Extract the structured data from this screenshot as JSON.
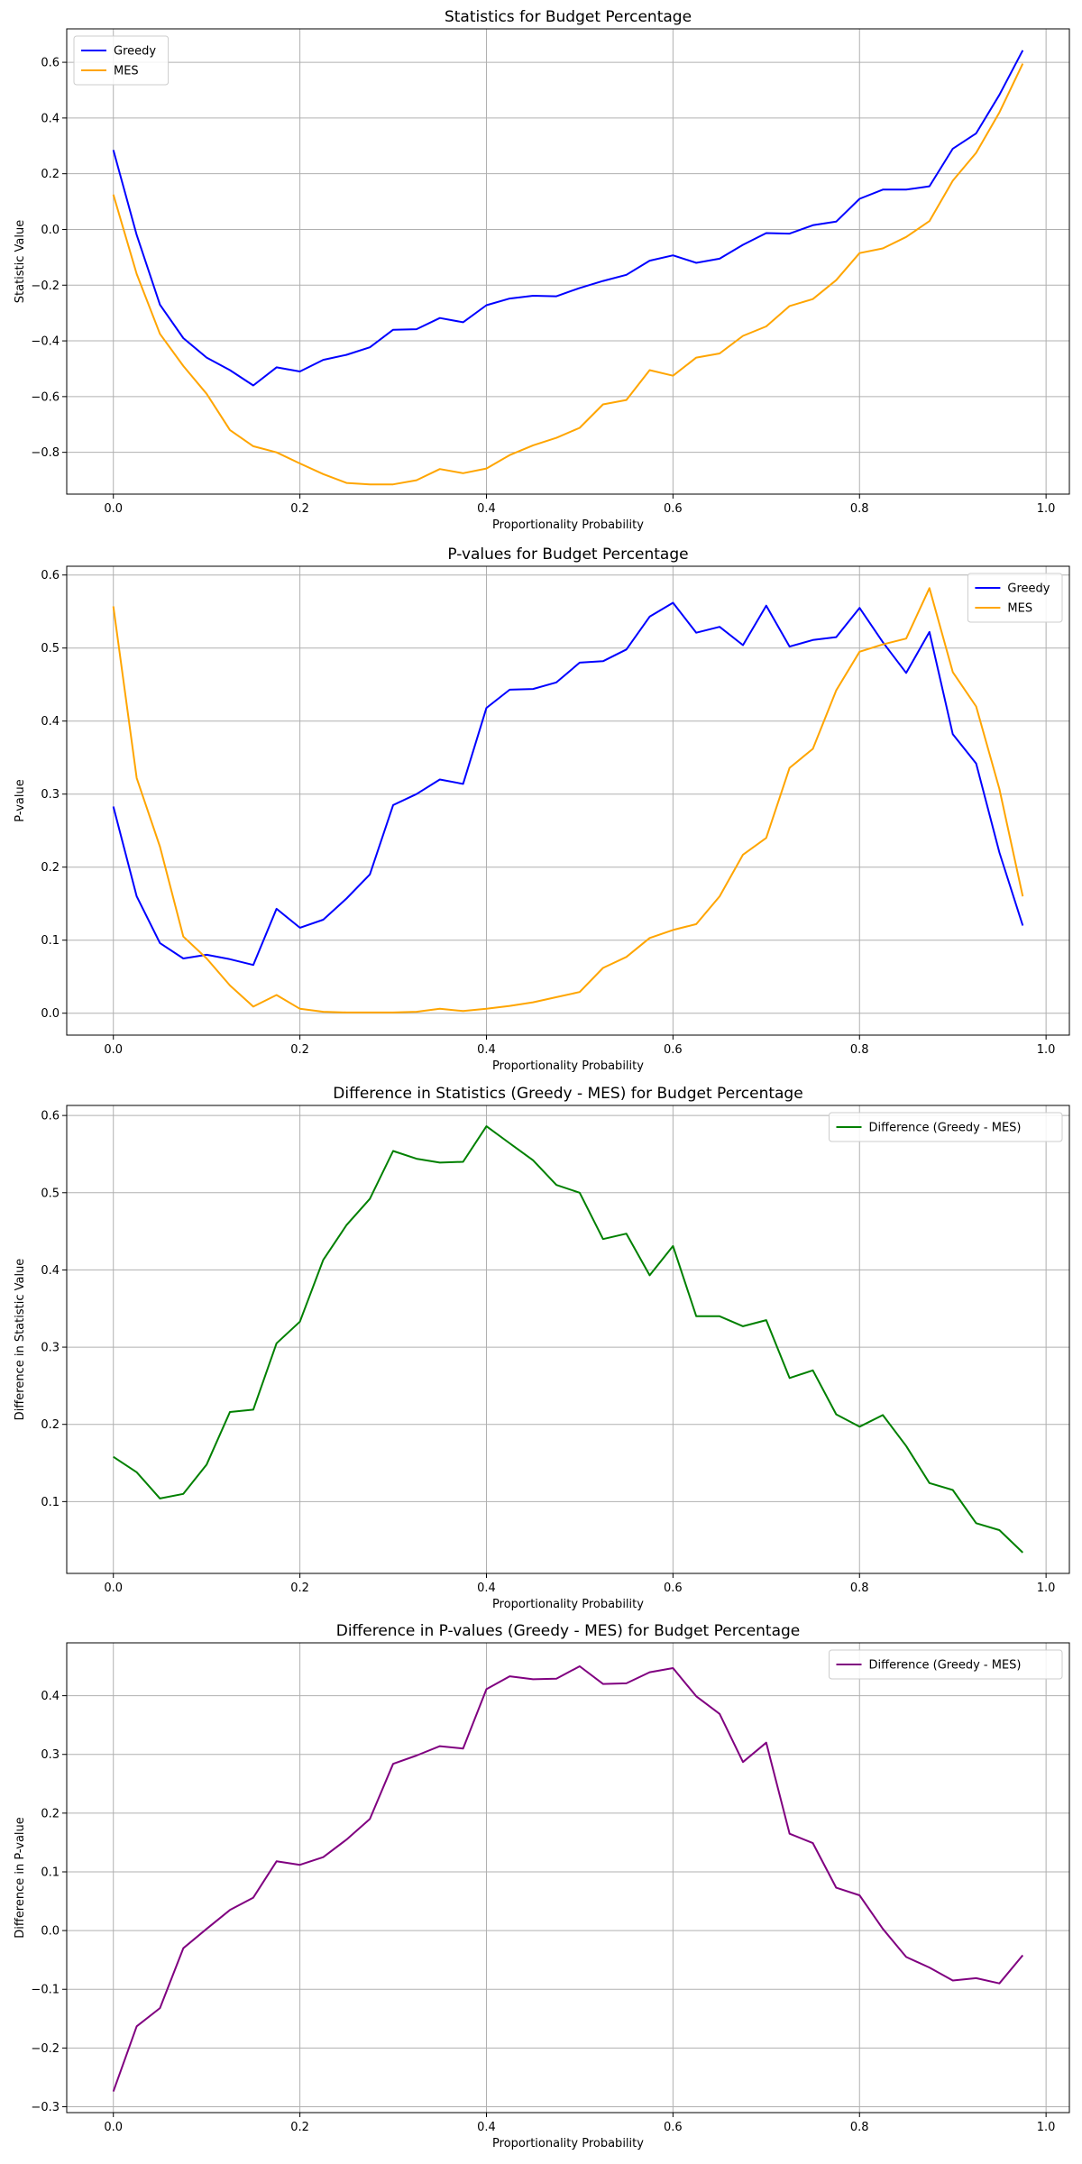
{
  "x_common": [
    0,
    0.025,
    0.05,
    0.075,
    0.1,
    0.125,
    0.15,
    0.175,
    0.2,
    0.225,
    0.25,
    0.275,
    0.3,
    0.325,
    0.35,
    0.375,
    0.4,
    0.425,
    0.45,
    0.475,
    0.5,
    0.525,
    0.55,
    0.575,
    0.6,
    0.625,
    0.65,
    0.675,
    0.7,
    0.725,
    0.75,
    0.775,
    0.8,
    0.825,
    0.85,
    0.875,
    0.9,
    0.925,
    0.95,
    0.975
  ],
  "chart_data": [
    {
      "type": "line",
      "title": "Statistics for Budget Percentage",
      "xlabel": "Proportionality Probability",
      "ylabel": "Statistic Value",
      "xlim": [
        -0.05,
        1.025
      ],
      "ylim": [
        -0.95,
        0.72
      ],
      "xticks": [
        0,
        0.2,
        0.4,
        0.6,
        0.8,
        1.0
      ],
      "xtick_labels": [
        "0.0",
        "0.2",
        "0.4",
        "0.6",
        "0.8",
        "1.0"
      ],
      "yticks": [
        -0.8,
        -0.6,
        -0.4,
        -0.2,
        0.0,
        0.2,
        0.4,
        0.6
      ],
      "ytick_labels": [
        "−0.8",
        "−0.6",
        "−0.4",
        "−0.2",
        "0.0",
        "0.2",
        "0.4",
        "0.6"
      ],
      "grid": true,
      "legend_position": "upper-left",
      "series": [
        {
          "name": "Greedy",
          "color": "#0000ff",
          "values": [
            0.285,
            -0.02,
            -0.27,
            -0.39,
            -0.46,
            -0.505,
            -0.56,
            -0.495,
            -0.51,
            -0.468,
            -0.45,
            -0.423,
            -0.36,
            -0.358,
            -0.318,
            -0.333,
            -0.272,
            -0.248,
            -0.238,
            -0.24,
            -0.21,
            -0.185,
            -0.163,
            -0.112,
            -0.093,
            -0.12,
            -0.105,
            -0.055,
            -0.013,
            -0.015,
            0.015,
            0.028,
            0.11,
            0.143,
            0.143,
            0.155,
            0.29,
            0.345,
            0.483,
            0.643
          ]
        },
        {
          "name": "MES",
          "color": "#ffa500",
          "values": [
            0.125,
            -0.16,
            -0.375,
            -0.49,
            -0.59,
            -0.72,
            -0.778,
            -0.8,
            -0.84,
            -0.878,
            -0.91,
            -0.915,
            -0.915,
            -0.9,
            -0.86,
            -0.875,
            -0.858,
            -0.81,
            -0.775,
            -0.748,
            -0.712,
            -0.628,
            -0.612,
            -0.505,
            -0.525,
            -0.46,
            -0.445,
            -0.382,
            -0.348,
            -0.275,
            -0.25,
            -0.182,
            -0.085,
            -0.068,
            -0.027,
            0.03,
            0.175,
            0.275,
            0.42,
            0.595
          ]
        }
      ]
    },
    {
      "type": "line",
      "title": "P-values for Budget Percentage",
      "xlabel": "Proportionality Probability",
      "ylabel": "P-value",
      "xlim": [
        -0.05,
        1.025
      ],
      "ylim": [
        -0.03,
        0.612
      ],
      "xticks": [
        0,
        0.2,
        0.4,
        0.6,
        0.8,
        1.0
      ],
      "xtick_labels": [
        "0.0",
        "0.2",
        "0.4",
        "0.6",
        "0.8",
        "1.0"
      ],
      "yticks": [
        0.0,
        0.1,
        0.2,
        0.3,
        0.4,
        0.5,
        0.6
      ],
      "ytick_labels": [
        "0.0",
        "0.1",
        "0.2",
        "0.3",
        "0.4",
        "0.5",
        "0.6"
      ],
      "grid": true,
      "legend_position": "upper-right",
      "series": [
        {
          "name": "Greedy",
          "color": "#0000ff",
          "values": [
            0.283,
            0.16,
            0.096,
            0.075,
            0.08,
            0.074,
            0.066,
            0.143,
            0.117,
            0.128,
            0.157,
            0.19,
            0.285,
            0.3,
            0.32,
            0.314,
            0.418,
            0.443,
            0.444,
            0.453,
            0.48,
            0.482,
            0.498,
            0.543,
            0.562,
            0.521,
            0.529,
            0.504,
            0.558,
            0.502,
            0.511,
            0.515,
            0.555,
            0.508,
            0.466,
            0.522,
            0.382,
            0.342,
            0.22,
            0.12
          ]
        },
        {
          "name": "MES",
          "color": "#ffa500",
          "values": [
            0.557,
            0.322,
            0.228,
            0.105,
            0.075,
            0.038,
            0.009,
            0.025,
            0.006,
            0.002,
            0.001,
            0.001,
            0.001,
            0.002,
            0.006,
            0.003,
            0.006,
            0.01,
            0.015,
            0.022,
            0.029,
            0.062,
            0.077,
            0.103,
            0.114,
            0.122,
            0.16,
            0.217,
            0.24,
            0.336,
            0.362,
            0.442,
            0.495,
            0.505,
            0.513,
            0.582,
            0.467,
            0.42,
            0.307,
            0.16
          ]
        }
      ]
    },
    {
      "type": "line",
      "title": "Difference in Statistics (Greedy - MES) for Budget Percentage",
      "xlabel": "Proportionality Probability",
      "ylabel": "Difference in Statistic Value",
      "xlim": [
        -0.05,
        1.025
      ],
      "ylim": [
        0.007,
        0.613
      ],
      "xticks": [
        0,
        0.2,
        0.4,
        0.6,
        0.8,
        1.0
      ],
      "xtick_labels": [
        "0.0",
        "0.2",
        "0.4",
        "0.6",
        "0.8",
        "1.0"
      ],
      "yticks": [
        0.1,
        0.2,
        0.3,
        0.4,
        0.5,
        0.6
      ],
      "ytick_labels": [
        "0.1",
        "0.2",
        "0.3",
        "0.4",
        "0.5",
        "0.6"
      ],
      "grid": true,
      "legend_position": "upper-right",
      "series": [
        {
          "name": "Difference (Greedy - MES)",
          "color": "#008000",
          "values": [
            0.158,
            0.138,
            0.104,
            0.11,
            0.148,
            0.216,
            0.219,
            0.305,
            0.333,
            0.413,
            0.458,
            0.492,
            0.554,
            0.544,
            0.539,
            0.54,
            0.586,
            0.564,
            0.542,
            0.51,
            0.5,
            0.44,
            0.447,
            0.393,
            0.431,
            0.34,
            0.34,
            0.327,
            0.335,
            0.26,
            0.27,
            0.213,
            0.197,
            0.212,
            0.172,
            0.124,
            0.115,
            0.072,
            0.063,
            0.034
          ]
        }
      ]
    },
    {
      "type": "line",
      "title": "Difference in P-values (Greedy - MES) for Budget Percentage",
      "xlabel": "Proportionality Probability",
      "ylabel": "Difference in P-value",
      "xlim": [
        -0.05,
        1.025
      ],
      "ylim": [
        -0.31,
        0.49
      ],
      "xticks": [
        0,
        0.2,
        0.4,
        0.6,
        0.8,
        1.0
      ],
      "xtick_labels": [
        "0.0",
        "0.2",
        "0.4",
        "0.6",
        "0.8",
        "1.0"
      ],
      "yticks": [
        -0.3,
        -0.2,
        -0.1,
        0.0,
        0.1,
        0.2,
        0.3,
        0.4
      ],
      "ytick_labels": [
        "−0.3",
        "−0.2",
        "−0.1",
        "0.0",
        "0.1",
        "0.2",
        "0.3",
        "0.4"
      ],
      "grid": true,
      "legend_position": "upper-right",
      "series": [
        {
          "name": "Difference (Greedy - MES)",
          "color": "#800080",
          "values": [
            -0.274,
            -0.163,
            -0.132,
            -0.03,
            0.003,
            0.035,
            0.056,
            0.118,
            0.112,
            0.125,
            0.155,
            0.19,
            0.284,
            0.298,
            0.314,
            0.31,
            0.411,
            0.433,
            0.428,
            0.429,
            0.45,
            0.42,
            0.421,
            0.44,
            0.447,
            0.399,
            0.369,
            0.287,
            0.32,
            0.165,
            0.149,
            0.073,
            0.06,
            0.003,
            -0.045,
            -0.063,
            -0.085,
            -0.081,
            -0.09,
            -0.042
          ]
        }
      ]
    }
  ]
}
